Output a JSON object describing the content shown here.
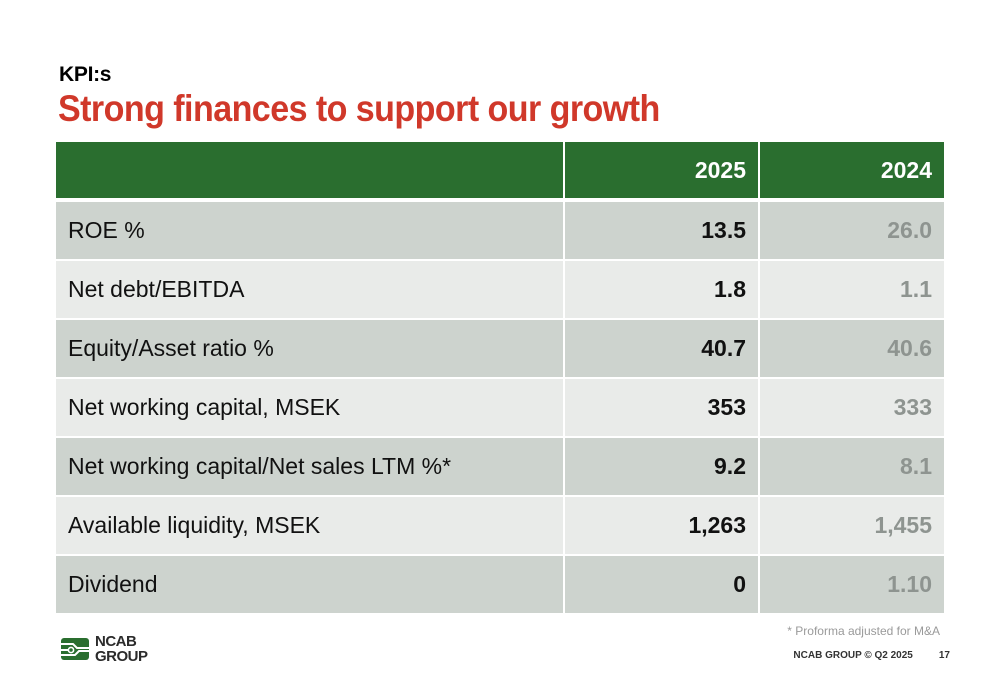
{
  "header": {
    "kicker": "KPI:s",
    "title": "Strong finances to support our growth"
  },
  "table": {
    "columns": [
      "",
      "2025",
      "2024"
    ],
    "rows": [
      {
        "label": "ROE %",
        "v2025": "13.5",
        "v2024": "26.0"
      },
      {
        "label": "Net debt/EBITDA",
        "v2025": "1.8",
        "v2024": "1.1"
      },
      {
        "label": "Equity/Asset ratio %",
        "v2025": "40.7",
        "v2024": "40.6"
      },
      {
        "label": "Net working capital, MSEK",
        "v2025": "353",
        "v2024": "333"
      },
      {
        "label": "Net working capital/Net sales LTM %*",
        "v2025": "9.2",
        "v2024": "8.1"
      },
      {
        "label": "Available liquidity, MSEK",
        "v2025": "1,263",
        "v2024": "1,455"
      },
      {
        "label": "Dividend",
        "v2025": "0",
        "v2024": "1.10"
      }
    ]
  },
  "footnote": "* Proforma adjusted for M&A",
  "logo": {
    "line1": "NCAB",
    "line2": "GROUP"
  },
  "footer": {
    "company": "NCAB GROUP © Q2 2025",
    "page": "17"
  },
  "colors": {
    "accent_red": "#d0382a",
    "header_green": "#2a6e2f",
    "row_dark": "#cdd3ce",
    "row_light": "#e9ebe9"
  }
}
